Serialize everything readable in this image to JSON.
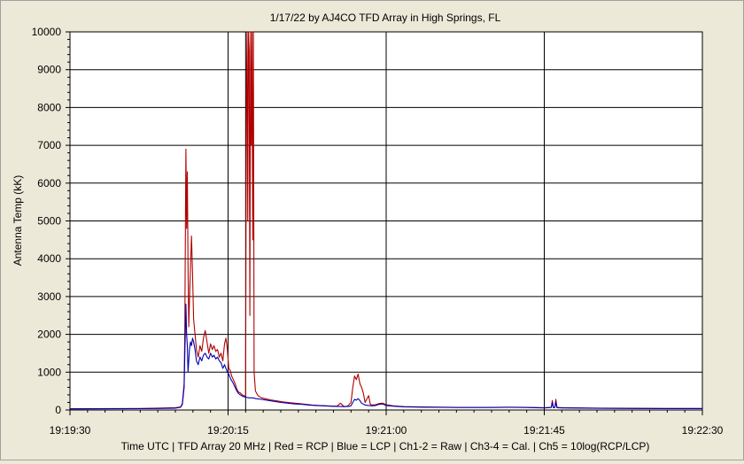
{
  "chart_data": {
    "type": "line",
    "title": "1/17/22  by  AJ4CO TFD Array  in  High Springs, FL",
    "xlabel": "Time UTC | TFD Array 20 MHz | Red = RCP | Blue = LCP | Ch1-2 = Raw | Ch3-4 = Cal. | Ch5 = 10log(RCP/LCP)",
    "ylabel": "Antenna Temp (kK)",
    "x_ticks": [
      "19:19:30",
      "19:20:15",
      "19:21:00",
      "19:21:45",
      "19:22:30"
    ],
    "x_range_seconds": [
      0,
      180
    ],
    "y_ticks": [
      "0",
      "1000",
      "2000",
      "3000",
      "4000",
      "5000",
      "6000",
      "7000",
      "8000",
      "9000",
      "10000"
    ],
    "ylim": [
      0,
      10000
    ],
    "grid": true,
    "vertical_markers_seconds": [
      45,
      50
    ],
    "series": [
      {
        "name": "RCP",
        "color": "#b00000",
        "points": [
          [
            0,
            30
          ],
          [
            20,
            40
          ],
          [
            25,
            50
          ],
          [
            30,
            60
          ],
          [
            31.5,
            80
          ],
          [
            32,
            180
          ],
          [
            32.5,
            700
          ],
          [
            32.7,
            2200
          ],
          [
            32.9,
            5500
          ],
          [
            33.0,
            6900
          ],
          [
            33.2,
            4800
          ],
          [
            33.4,
            6300
          ],
          [
            33.6,
            3800
          ],
          [
            33.8,
            2200
          ],
          [
            34.0,
            2900
          ],
          [
            34.3,
            3800
          ],
          [
            34.6,
            4600
          ],
          [
            34.9,
            3600
          ],
          [
            35.2,
            2400
          ],
          [
            35.6,
            2000
          ],
          [
            36.0,
            1600
          ],
          [
            36.5,
            1400
          ],
          [
            37.0,
            1700
          ],
          [
            37.5,
            1550
          ],
          [
            38.0,
            1900
          ],
          [
            38.5,
            2100
          ],
          [
            39.0,
            1800
          ],
          [
            39.5,
            1500
          ],
          [
            40.0,
            1750
          ],
          [
            40.5,
            1600
          ],
          [
            41.0,
            1700
          ],
          [
            41.5,
            1550
          ],
          [
            42.0,
            1600
          ],
          [
            42.5,
            1400
          ],
          [
            43.0,
            1500
          ],
          [
            43.5,
            1300
          ],
          [
            44.0,
            1750
          ],
          [
            44.4,
            1900
          ],
          [
            44.8,
            1600
          ],
          [
            45.2,
            1100
          ],
          [
            45.6,
            1050
          ],
          [
            46.0,
            900
          ],
          [
            46.5,
            800
          ],
          [
            47.0,
            700
          ],
          [
            47.5,
            550
          ],
          [
            48.0,
            470
          ],
          [
            48.5,
            450
          ],
          [
            49.0,
            400
          ],
          [
            49.5,
            380
          ],
          [
            49.8,
            350
          ],
          [
            50.0,
            400
          ],
          [
            50.2,
            8000
          ],
          [
            50.4,
            10000
          ],
          [
            50.6,
            5000
          ],
          [
            50.8,
            10000
          ],
          [
            51.0,
            9500
          ],
          [
            51.2,
            2500
          ],
          [
            51.4,
            10000
          ],
          [
            51.6,
            7000
          ],
          [
            51.8,
            10000
          ],
          [
            52.0,
            4500
          ],
          [
            52.2,
            10000
          ],
          [
            52.4,
            1000
          ],
          [
            52.8,
            500
          ],
          [
            53.5,
            380
          ],
          [
            54.5,
            320
          ],
          [
            55.5,
            300
          ],
          [
            57,
            270
          ],
          [
            59,
            240
          ],
          [
            61,
            210
          ],
          [
            63,
            190
          ],
          [
            65,
            170
          ],
          [
            67,
            150
          ],
          [
            69,
            130
          ],
          [
            71,
            120
          ],
          [
            73,
            110
          ],
          [
            75,
            100
          ],
          [
            76,
            100
          ],
          [
            77,
            180
          ],
          [
            78,
            90
          ],
          [
            79,
            100
          ],
          [
            80,
            200
          ],
          [
            80.5,
            600
          ],
          [
            81,
            900
          ],
          [
            81.5,
            800
          ],
          [
            82,
            950
          ],
          [
            82.5,
            700
          ],
          [
            83,
            600
          ],
          [
            83.5,
            450
          ],
          [
            84,
            200
          ],
          [
            85,
            380
          ],
          [
            85.5,
            150
          ],
          [
            86,
            130
          ],
          [
            87,
            140
          ],
          [
            88,
            170
          ],
          [
            89,
            180
          ],
          [
            90,
            140
          ],
          [
            92,
            110
          ],
          [
            95,
            90
          ],
          [
            100,
            80
          ],
          [
            110,
            70
          ],
          [
            120,
            70
          ],
          [
            125,
            75
          ],
          [
            130,
            70
          ],
          [
            135,
            60
          ],
          [
            137,
            70
          ],
          [
            137.3,
            250
          ],
          [
            137.6,
            60
          ],
          [
            138,
            70
          ],
          [
            138.3,
            280
          ],
          [
            138.6,
            70
          ],
          [
            140,
            60
          ],
          [
            150,
            50
          ],
          [
            160,
            45
          ],
          [
            170,
            40
          ],
          [
            180,
            40
          ]
        ]
      },
      {
        "name": "LCP",
        "color": "#0000b0",
        "points": [
          [
            0,
            30
          ],
          [
            20,
            35
          ],
          [
            25,
            40
          ],
          [
            30,
            50
          ],
          [
            31.5,
            70
          ],
          [
            32,
            150
          ],
          [
            32.5,
            600
          ],
          [
            32.7,
            1500
          ],
          [
            32.9,
            2300
          ],
          [
            33.0,
            2800
          ],
          [
            33.2,
            2000
          ],
          [
            33.4,
            1700
          ],
          [
            33.6,
            1000
          ],
          [
            33.8,
            1300
          ],
          [
            34.0,
            1600
          ],
          [
            34.3,
            1800
          ],
          [
            34.6,
            1700
          ],
          [
            34.9,
            1900
          ],
          [
            35.2,
            1800
          ],
          [
            35.6,
            1600
          ],
          [
            36.0,
            1300
          ],
          [
            36.5,
            1200
          ],
          [
            37.0,
            1400
          ],
          [
            37.5,
            1300
          ],
          [
            38.0,
            1450
          ],
          [
            38.5,
            1500
          ],
          [
            39.0,
            1400
          ],
          [
            39.5,
            1350
          ],
          [
            40.0,
            1500
          ],
          [
            40.5,
            1400
          ],
          [
            41.0,
            1450
          ],
          [
            41.5,
            1350
          ],
          [
            42.0,
            1400
          ],
          [
            42.5,
            1300
          ],
          [
            43.0,
            1250
          ],
          [
            43.5,
            1100
          ],
          [
            44.0,
            1200
          ],
          [
            44.4,
            1100
          ],
          [
            44.8,
            1000
          ],
          [
            45.2,
            950
          ],
          [
            45.6,
            850
          ],
          [
            46.0,
            780
          ],
          [
            46.5,
            700
          ],
          [
            47.0,
            600
          ],
          [
            47.5,
            500
          ],
          [
            48.0,
            430
          ],
          [
            48.5,
            400
          ],
          [
            49.0,
            370
          ],
          [
            49.5,
            350
          ],
          [
            50.0,
            340
          ],
          [
            51,
            320
          ],
          [
            52,
            320
          ],
          [
            53,
            300
          ],
          [
            54.5,
            280
          ],
          [
            56,
            260
          ],
          [
            58,
            230
          ],
          [
            60,
            200
          ],
          [
            62,
            180
          ],
          [
            64,
            160
          ],
          [
            66,
            150
          ],
          [
            68,
            130
          ],
          [
            70,
            120
          ],
          [
            72,
            110
          ],
          [
            74,
            100
          ],
          [
            76,
            95
          ],
          [
            78,
            90
          ],
          [
            79.5,
            95
          ],
          [
            80,
            110
          ],
          [
            80.5,
            200
          ],
          [
            81,
            280
          ],
          [
            81.5,
            260
          ],
          [
            82,
            300
          ],
          [
            82.5,
            250
          ],
          [
            83,
            180
          ],
          [
            84,
            130
          ],
          [
            85,
            120
          ],
          [
            86,
            110
          ],
          [
            87,
            120
          ],
          [
            88,
            150
          ],
          [
            89,
            160
          ],
          [
            90,
            120
          ],
          [
            92,
            100
          ],
          [
            95,
            85
          ],
          [
            100,
            75
          ],
          [
            110,
            65
          ],
          [
            120,
            65
          ],
          [
            125,
            70
          ],
          [
            130,
            65
          ],
          [
            135,
            55
          ],
          [
            137,
            65
          ],
          [
            137.3,
            200
          ],
          [
            137.6,
            60
          ],
          [
            138,
            65
          ],
          [
            138.3,
            210
          ],
          [
            138.6,
            60
          ],
          [
            140,
            55
          ],
          [
            150,
            45
          ],
          [
            160,
            40
          ],
          [
            170,
            38
          ],
          [
            180,
            38
          ]
        ]
      }
    ]
  }
}
